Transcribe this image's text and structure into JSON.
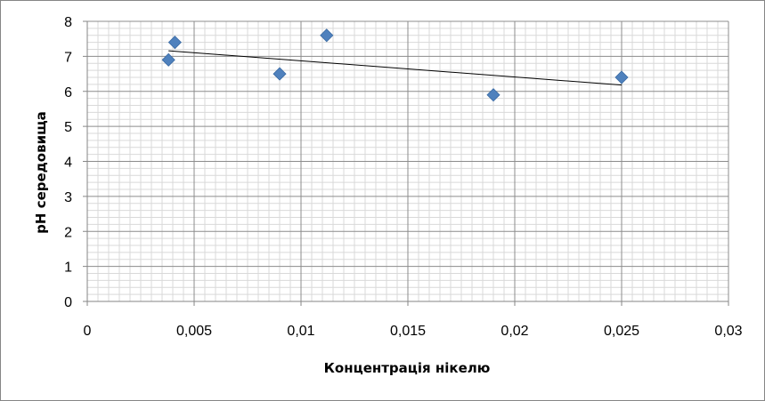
{
  "chart_data": {
    "type": "scatter",
    "title": "",
    "xlabel": "Концентрація нікелю",
    "ylabel": "pH середовища",
    "xlim": [
      0,
      0.03
    ],
    "ylim": [
      0,
      8
    ],
    "x_ticks": [
      "0",
      "0,005",
      "0,01",
      "0,015",
      "0,02",
      "0,025",
      "0,03"
    ],
    "y_ticks": [
      "0",
      "1",
      "2",
      "3",
      "4",
      "5",
      "6",
      "7",
      "8"
    ],
    "grid": true,
    "legend": "none",
    "marker_color": "#4F81BD",
    "points": [
      {
        "x": 0.0038,
        "y": 6.9
      },
      {
        "x": 0.0041,
        "y": 7.4
      },
      {
        "x": 0.009,
        "y": 6.5
      },
      {
        "x": 0.0112,
        "y": 7.6
      },
      {
        "x": 0.019,
        "y": 5.9
      },
      {
        "x": 0.025,
        "y": 6.4
      }
    ],
    "trendline": {
      "type": "linear",
      "x": [
        0.0038,
        0.025
      ],
      "y": [
        7.16,
        6.18
      ],
      "color": "#000000"
    }
  }
}
